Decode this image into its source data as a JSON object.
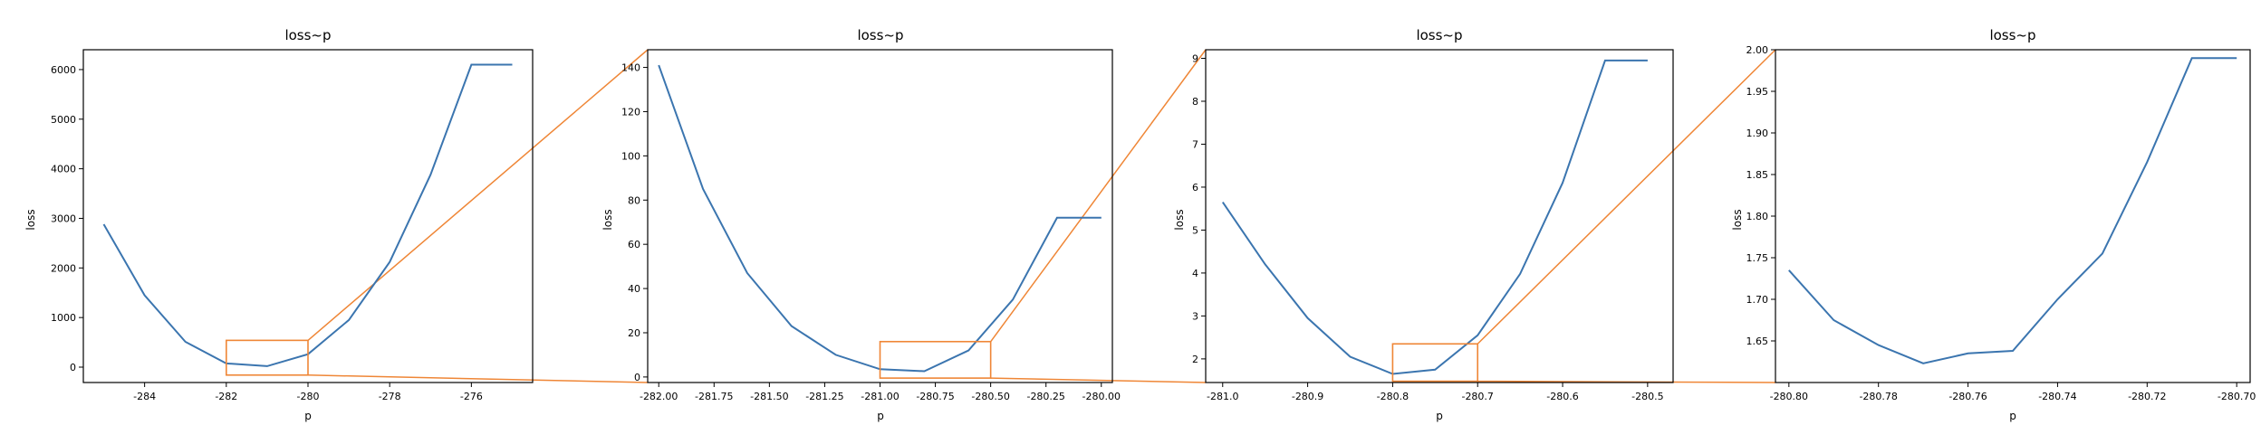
{
  "colors": {
    "line": "#3b75af",
    "zoom": "#ef8636",
    "axes": "#000000"
  },
  "chart_data": [
    {
      "type": "line",
      "title": "loss~p",
      "xlabel": "p",
      "ylabel": "loss",
      "xlim": [
        -285.5,
        -274.5
      ],
      "ylim": [
        -310,
        6400
      ],
      "xticks": [
        -284,
        -282,
        -280,
        -278,
        -276
      ],
      "xtick_labels": [
        "-284",
        "-282",
        "-280",
        "-278",
        "-276"
      ],
      "yticks": [
        0,
        1000,
        2000,
        3000,
        4000,
        5000,
        6000
      ],
      "ytick_labels": [
        "0",
        "1000",
        "2000",
        "3000",
        "4000",
        "5000",
        "6000"
      ],
      "series": [
        {
          "x": [
            -285.0,
            -284.0,
            -283.0,
            -282.0,
            -281.0,
            -280.0,
            -279.0,
            -278.0,
            -277.0,
            -276.0,
            -275.0
          ],
          "y": [
            2880,
            1450,
            510,
            75,
            20,
            260,
            950,
            2120,
            3880,
            6100,
            6100
          ]
        }
      ],
      "zoom_box": {
        "x": [
          -282.0,
          -280.0
        ],
        "y": [
          -160,
          540
        ]
      }
    },
    {
      "type": "line",
      "title": "loss~p",
      "xlabel": "p",
      "ylabel": "loss",
      "xlim": [
        -282.05,
        -279.95
      ],
      "ylim": [
        -2.5,
        148
      ],
      "xticks": [
        -282.0,
        -281.75,
        -281.5,
        -281.25,
        -281.0,
        -280.75,
        -280.5,
        -280.25,
        -280.0
      ],
      "xtick_labels": [
        "-282.00",
        "-281.75",
        "-281.50",
        "-281.25",
        "-281.00",
        "-280.75",
        "-280.50",
        "-280.25",
        "-280.00"
      ],
      "yticks": [
        0,
        20,
        40,
        60,
        80,
        100,
        120,
        140
      ],
      "ytick_labels": [
        "0",
        "20",
        "40",
        "60",
        "80",
        "100",
        "120",
        "140"
      ],
      "series": [
        {
          "x": [
            -282.0,
            -281.8,
            -281.6,
            -281.4,
            -281.2,
            -281.0,
            -280.8,
            -280.6,
            -280.4,
            -280.2,
            -280.0
          ],
          "y": [
            141,
            85,
            47,
            23,
            10,
            3.5,
            2.6,
            12,
            35,
            72,
            72
          ]
        }
      ],
      "zoom_box": {
        "x": [
          -281.0,
          -280.5
        ],
        "y": [
          -0.5,
          16
        ]
      }
    },
    {
      "type": "line",
      "title": "loss~p",
      "xlabel": "p",
      "ylabel": "loss",
      "xlim": [
        -281.02,
        -280.47
      ],
      "ylim": [
        1.45,
        9.2
      ],
      "xticks": [
        -281.0,
        -280.9,
        -280.8,
        -280.7,
        -280.6,
        -280.5
      ],
      "xtick_labels": [
        "-281.0",
        "-280.9",
        "-280.8",
        "-280.7",
        "-280.6",
        "-280.5"
      ],
      "yticks": [
        2,
        3,
        4,
        5,
        6,
        7,
        8,
        9
      ],
      "ytick_labels": [
        "2",
        "3",
        "4",
        "5",
        "6",
        "7",
        "8",
        "9"
      ],
      "series": [
        {
          "x": [
            -281.0,
            -280.95,
            -280.9,
            -280.85,
            -280.8,
            -280.75,
            -280.7,
            -280.65,
            -280.6,
            -280.55,
            -280.5
          ],
          "y": [
            5.65,
            4.2,
            2.95,
            2.05,
            1.65,
            1.75,
            2.55,
            3.98,
            6.1,
            8.95,
            8.95
          ]
        }
      ],
      "zoom_box": {
        "x": [
          -280.8,
          -280.7
        ],
        "y": [
          1.48,
          2.35
        ]
      }
    },
    {
      "type": "line",
      "title": "loss~p",
      "xlabel": "p",
      "ylabel": "loss",
      "xlim": [
        -280.803,
        -280.697
      ],
      "ylim": [
        1.6,
        2.0
      ],
      "xticks": [
        -280.8,
        -280.78,
        -280.76,
        -280.74,
        -280.72,
        -280.7
      ],
      "xtick_labels": [
        "-280.80",
        "-280.78",
        "-280.76",
        "-280.74",
        "-280.72",
        "-280.70"
      ],
      "yticks": [
        1.65,
        1.7,
        1.75,
        1.8,
        1.85,
        1.9,
        1.95,
        2.0
      ],
      "ytick_labels": [
        "1.65",
        "1.70",
        "1.75",
        "1.80",
        "1.85",
        "1.90",
        "1.95",
        "2.00"
      ],
      "series": [
        {
          "x": [
            -280.8,
            -280.79,
            -280.78,
            -280.77,
            -280.76,
            -280.75,
            -280.74,
            -280.73,
            -280.72,
            -280.71,
            -280.7
          ],
          "y": [
            1.735,
            1.675,
            1.645,
            1.623,
            1.635,
            1.638,
            1.7,
            1.755,
            1.865,
            1.99,
            1.99
          ]
        }
      ]
    }
  ]
}
